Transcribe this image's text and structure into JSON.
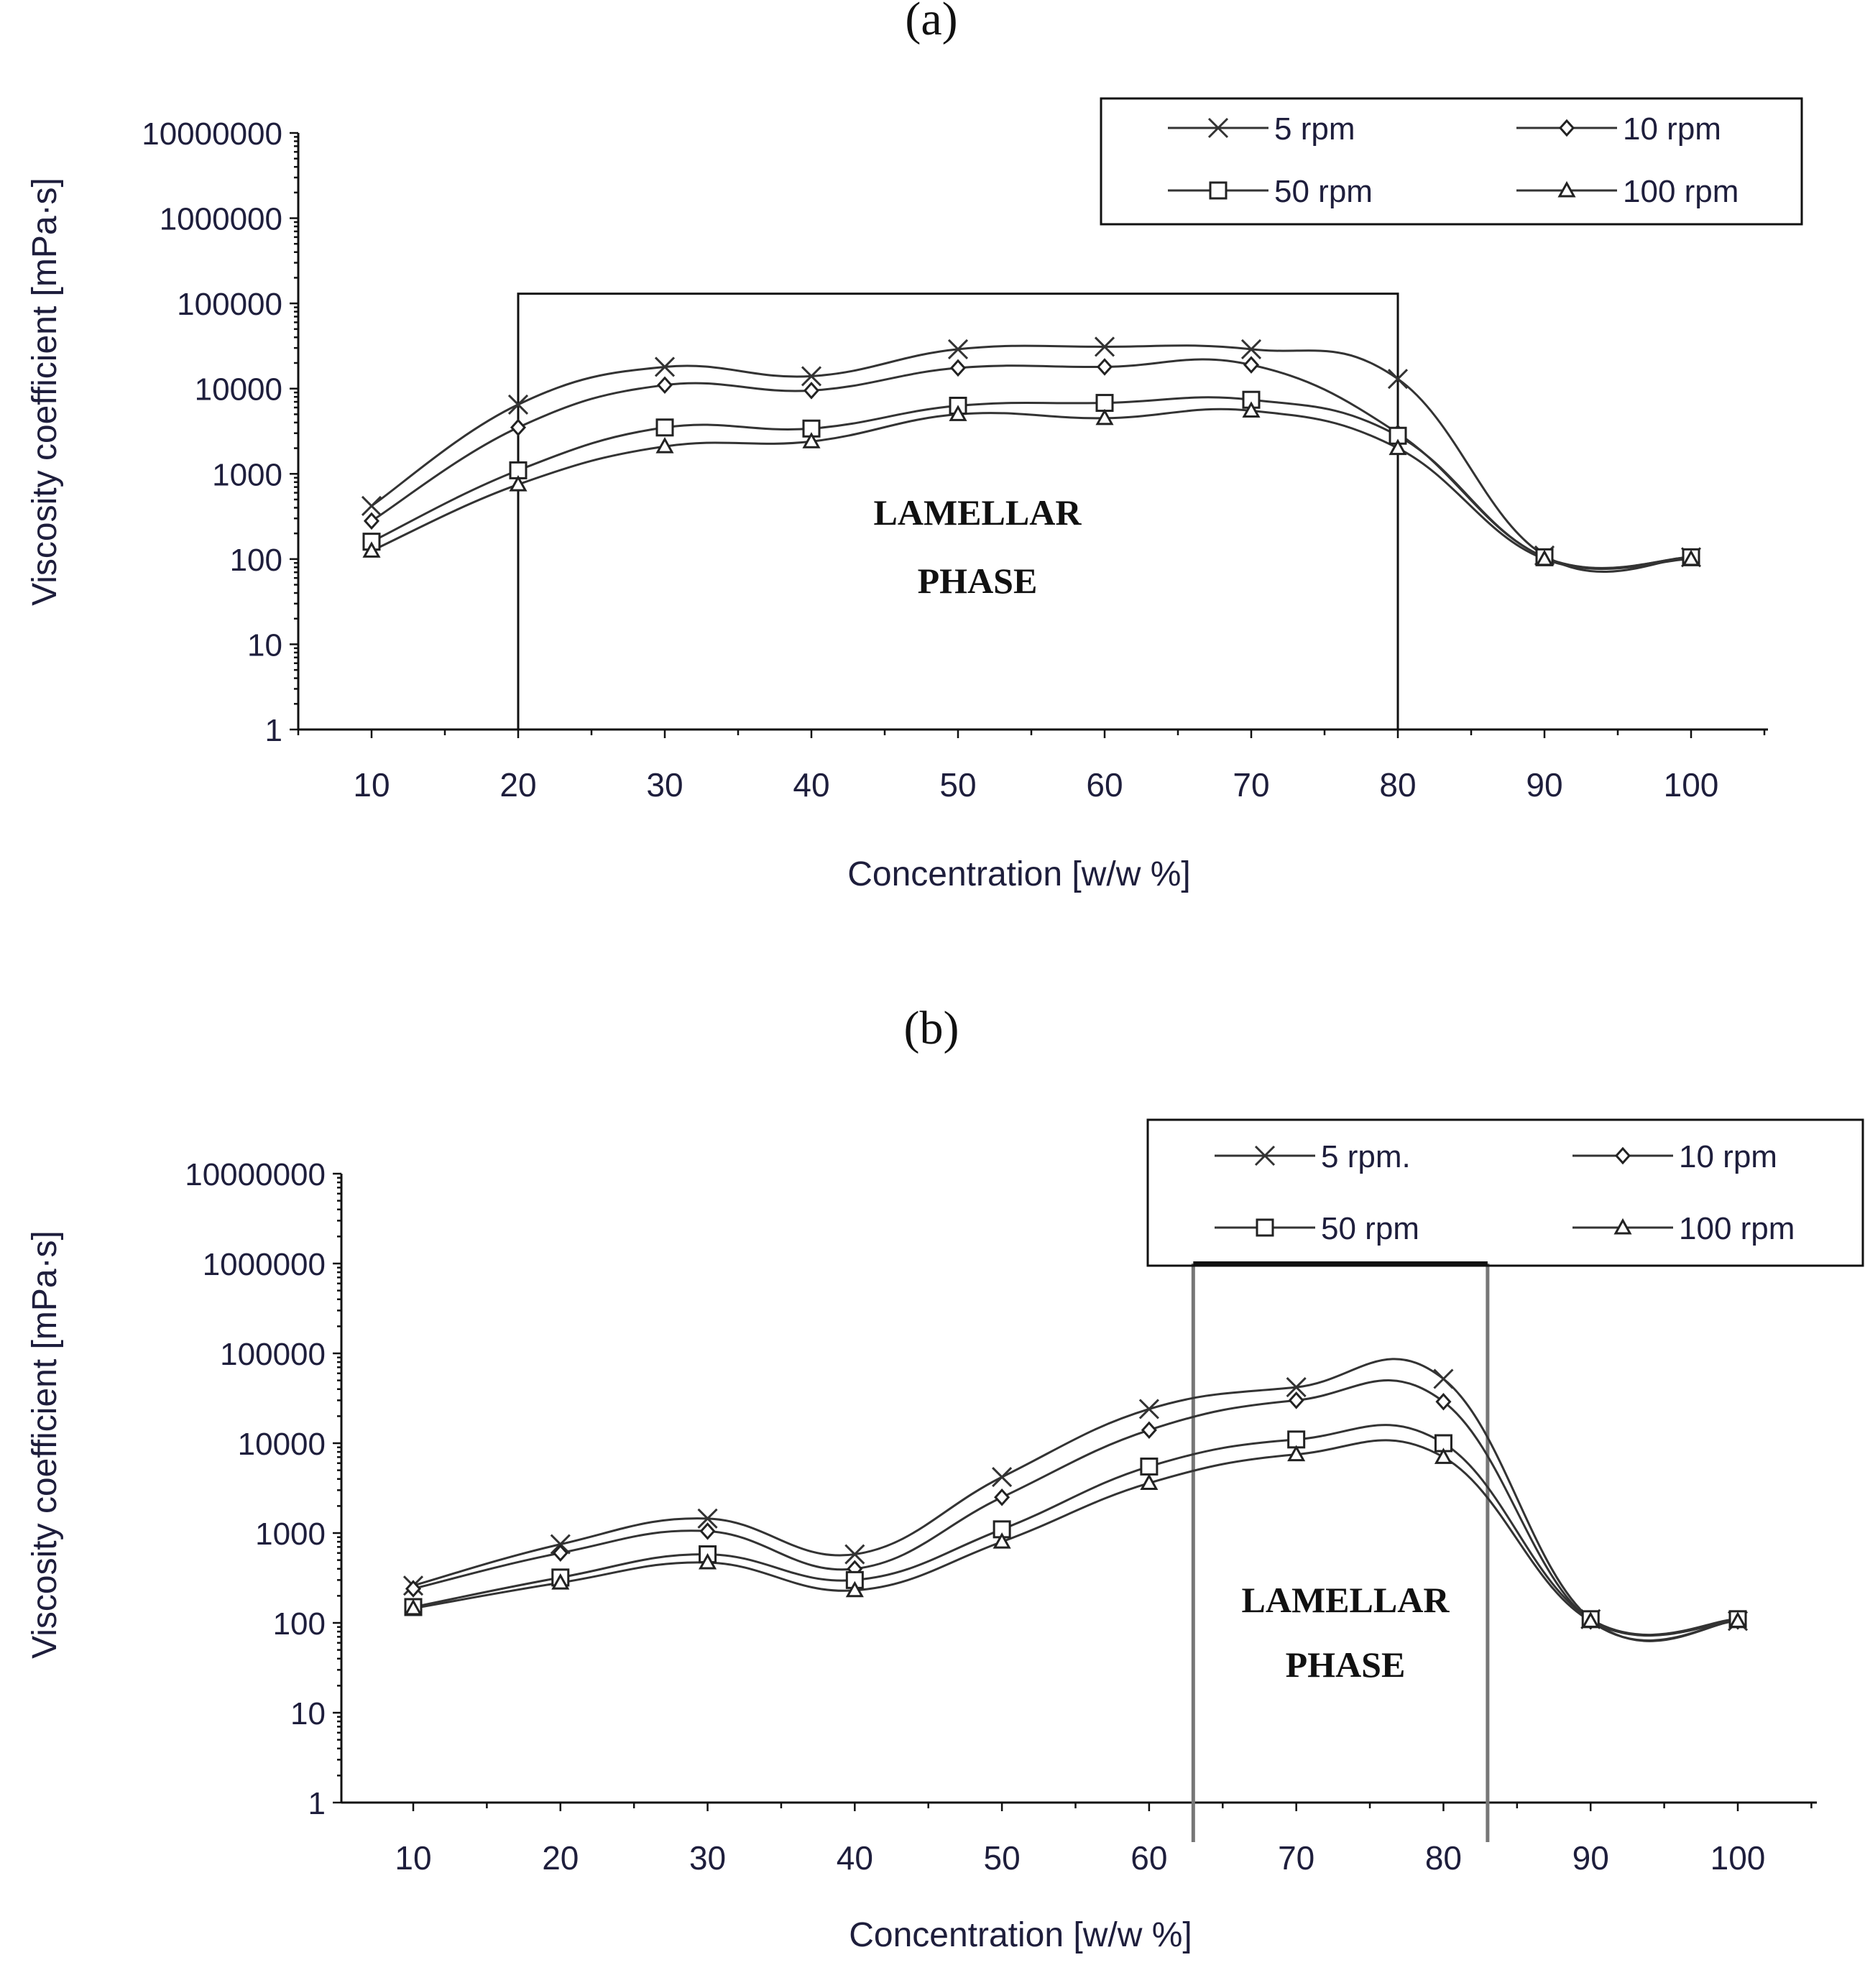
{
  "chart_data": [
    {
      "panel_label": "(a)",
      "type": "line",
      "xlabel": "Concentration [w/w %]",
      "ylabel": "Viscosity coefficient    [mPa·s]",
      "y_scale": "log",
      "ylim": [
        1,
        10000000
      ],
      "y_ticks": [
        "1",
        "10",
        "100",
        "1000",
        "10000",
        "100000",
        "1000000",
        "10000000"
      ],
      "x": [
        10,
        20,
        30,
        40,
        50,
        60,
        70,
        80,
        90,
        100
      ],
      "x_ticks": [
        "10",
        "20",
        "30",
        "40",
        "50",
        "60",
        "70",
        "80",
        "90",
        "100"
      ],
      "legend_position": "top-right",
      "series": [
        {
          "name": "5 rpm",
          "marker": "x",
          "values": [
            420,
            6500,
            18000,
            14000,
            29000,
            31000,
            29000,
            13000,
            110,
            105
          ]
        },
        {
          "name": "10 rpm",
          "marker": "diamond",
          "values": [
            280,
            3500,
            11000,
            9500,
            17500,
            18000,
            19000,
            3000,
            105,
            105
          ]
        },
        {
          "name": "50 rpm",
          "marker": "square",
          "values": [
            160,
            1100,
            3500,
            3400,
            6300,
            6800,
            7400,
            2800,
            105,
            105
          ]
        },
        {
          "name": "100 rpm",
          "marker": "triangle",
          "values": [
            125,
            750,
            2100,
            2400,
            5000,
            4500,
            5500,
            2000,
            100,
            100
          ]
        }
      ],
      "annotation": {
        "line1": "LAMELLAR",
        "line2": "PHASE",
        "x_range": [
          20,
          80
        ],
        "y_top": 130000
      }
    },
    {
      "panel_label": "(b)",
      "type": "line",
      "xlabel": "Concentration [w/w %]",
      "ylabel": "Viscosity coefficient    [mPa·s]",
      "y_scale": "log",
      "ylim": [
        1,
        10000000
      ],
      "y_ticks": [
        "1",
        "10",
        "100",
        "1000",
        "10000",
        "100000",
        "1000000",
        "10000000"
      ],
      "x": [
        10,
        20,
        30,
        40,
        50,
        60,
        70,
        80,
        90,
        100
      ],
      "x_ticks": [
        "10",
        "20",
        "30",
        "40",
        "50",
        "60",
        "70",
        "80",
        "90",
        "100"
      ],
      "legend_position": "top-right",
      "series": [
        {
          "name": "5 rpm.",
          "marker": "x",
          "values": [
            260,
            750,
            1450,
            580,
            4200,
            24000,
            42000,
            52000,
            110,
            105
          ]
        },
        {
          "name": "10 rpm",
          "marker": "diamond",
          "values": [
            240,
            600,
            1050,
            400,
            2500,
            14000,
            30000,
            29000,
            105,
            105
          ]
        },
        {
          "name": "50 rpm",
          "marker": "square",
          "values": [
            150,
            320,
            580,
            300,
            1100,
            5500,
            11000,
            10000,
            110,
            110
          ]
        },
        {
          "name": "100 rpm",
          "marker": "triangle",
          "values": [
            145,
            280,
            470,
            230,
            800,
            3600,
            7500,
            7000,
            105,
            105
          ]
        }
      ],
      "annotation": {
        "line1": "LAMELLAR",
        "line2": "PHASE",
        "x_range": [
          63,
          83
        ],
        "y_top": 1000000
      }
    }
  ]
}
